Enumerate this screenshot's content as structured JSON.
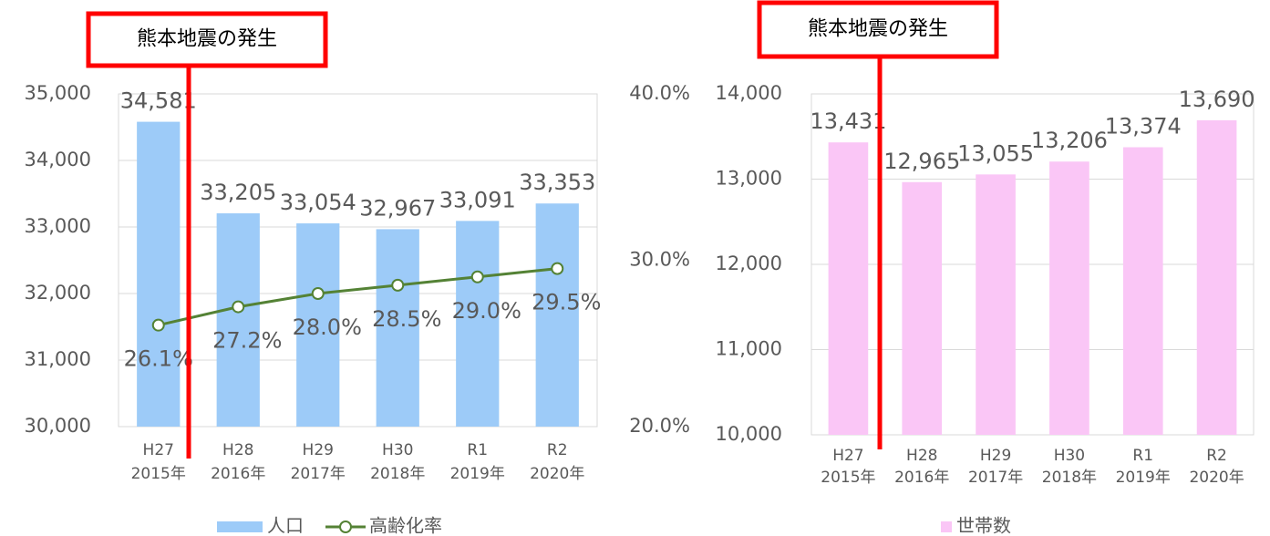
{
  "chart_data": [
    {
      "type": "bar",
      "annotation": "熊本地震の発生",
      "categories": [
        [
          "H27",
          "2015年"
        ],
        [
          "H28",
          "2016年"
        ],
        [
          "H29",
          "2017年"
        ],
        [
          "H30",
          "2018年"
        ],
        [
          "R1",
          "2019年"
        ],
        [
          "R2",
          "2020年"
        ]
      ],
      "series": [
        {
          "name": "人口",
          "type": "bar",
          "color": "#9dcbf8",
          "values": [
            34581,
            33205,
            33054,
            32967,
            33091,
            33353
          ],
          "value_labels": [
            "34,581",
            "33,205",
            "33,054",
            "32,967",
            "33,091",
            "33,353"
          ]
        },
        {
          "name": "高齢化率",
          "type": "line",
          "axis": "y2",
          "color": "#548235",
          "values": [
            26.1,
            27.2,
            28.0,
            28.5,
            29.0,
            29.5
          ],
          "value_labels": [
            "26.1%",
            "27.2%",
            "28.0%",
            "28.5%",
            "29.0%",
            "29.5%"
          ]
        }
      ],
      "ylim": [
        30000,
        35000
      ],
      "yticks": [
        {
          "value": 30000,
          "label": "30,000"
        },
        {
          "value": 31000,
          "label": "31,000"
        },
        {
          "value": 32000,
          "label": "32,000"
        },
        {
          "value": 33000,
          "label": "33,000"
        },
        {
          "value": 34000,
          "label": "34,000"
        },
        {
          "value": 35000,
          "label": "35,000"
        }
      ],
      "y2lim": [
        20,
        40
      ],
      "y2ticks": [
        {
          "value": 20,
          "label": "20.0%"
        },
        {
          "value": 30,
          "label": "30.0%"
        },
        {
          "value": 40,
          "label": "40.0%"
        }
      ],
      "grid": true
    },
    {
      "type": "bar",
      "annotation": "熊本地震の発生",
      "categories": [
        [
          "H27",
          "2015年"
        ],
        [
          "H28",
          "2016年"
        ],
        [
          "H29",
          "2017年"
        ],
        [
          "H30",
          "2018年"
        ],
        [
          "R1",
          "2019年"
        ],
        [
          "R2",
          "2020年"
        ]
      ],
      "series": [
        {
          "name": "世帯数",
          "type": "bar",
          "color": "#fac6f6",
          "values": [
            13431,
            12965,
            13055,
            13206,
            13374,
            13690
          ],
          "value_labels": [
            "13,431",
            "12,965",
            "13,055",
            "13,206",
            "13,374",
            "13,690"
          ]
        }
      ],
      "ylim": [
        10000,
        14000
      ],
      "yticks": [
        {
          "value": 10000,
          "label": "10,000"
        },
        {
          "value": 11000,
          "label": "11,000"
        },
        {
          "value": 12000,
          "label": "12,000"
        },
        {
          "value": 13000,
          "label": "13,000"
        },
        {
          "value": 14000,
          "label": "14,000"
        }
      ],
      "grid": true
    }
  ]
}
